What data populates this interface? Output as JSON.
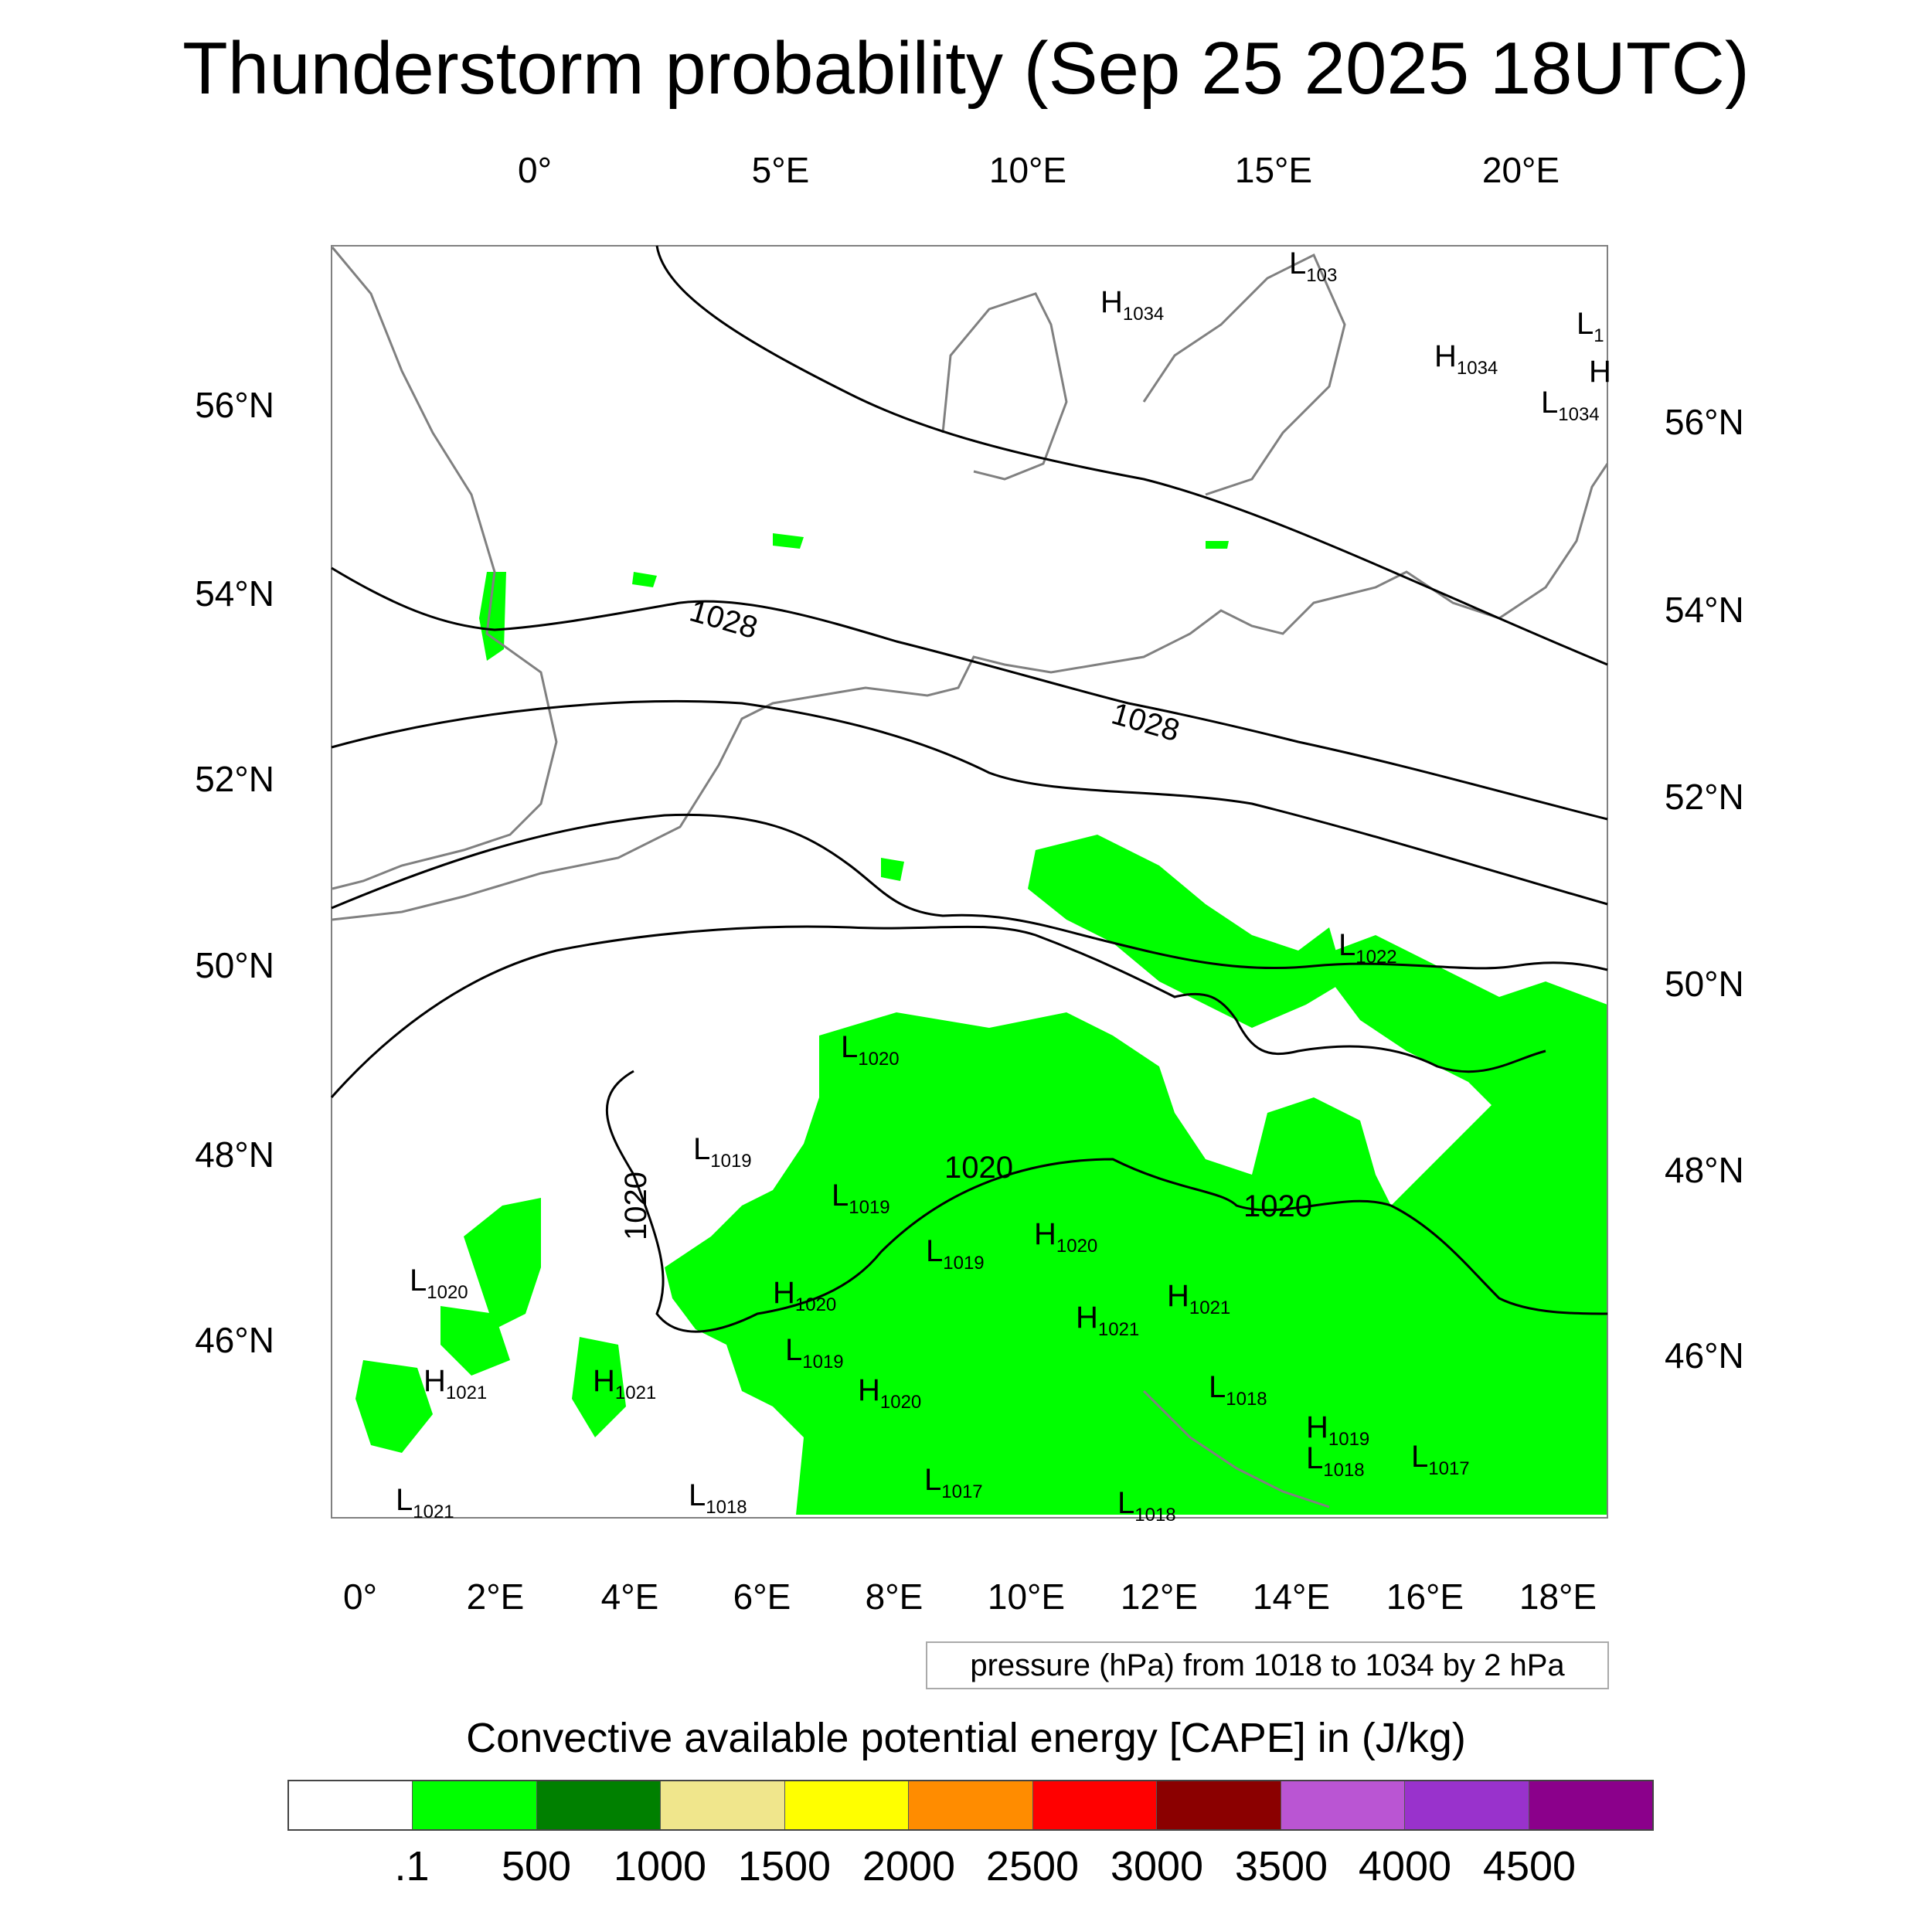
{
  "title": "Thunderstorm probability (Sep 25 2025 18UTC)",
  "map": {
    "top_lon_labels": [
      "0°",
      "5°E",
      "10°E",
      "15°E",
      "20°E"
    ],
    "bottom_lon_labels": [
      "0°",
      "2°E",
      "4°E",
      "6°E",
      "8°E",
      "10°E",
      "12°E",
      "14°E",
      "16°E",
      "18°E"
    ],
    "left_lat_labels": [
      "56°N",
      "54°N",
      "52°N",
      "50°N",
      "48°N",
      "46°N"
    ],
    "right_lat_labels": [
      "56°N",
      "54°N",
      "52°N",
      "50°N",
      "48°N",
      "46°N"
    ],
    "isobar_labels": [
      "1028",
      "1028",
      "1020",
      "1020",
      "1020"
    ],
    "pressure_centers": [
      {
        "type": "L",
        "value": "103"
      },
      {
        "type": "H",
        "value": "1034"
      },
      {
        "type": "H",
        "value": "1034"
      },
      {
        "type": "L",
        "value": "1"
      },
      {
        "type": "H",
        "value": ""
      },
      {
        "type": "L",
        "value": "1034"
      },
      {
        "type": "L",
        "value": "1022"
      },
      {
        "type": "L",
        "value": "1020"
      },
      {
        "type": "L",
        "value": "1019"
      },
      {
        "type": "L",
        "value": "1019"
      },
      {
        "type": "L",
        "value": "1019"
      },
      {
        "type": "H",
        "value": "1020"
      },
      {
        "type": "H",
        "value": "1020"
      },
      {
        "type": "H",
        "value": "1021"
      },
      {
        "type": "H",
        "value": "1021"
      },
      {
        "type": "L",
        "value": "1020"
      },
      {
        "type": "H",
        "value": "1021"
      },
      {
        "type": "H",
        "value": "1021"
      },
      {
        "type": "L",
        "value": "1019"
      },
      {
        "type": "H",
        "value": "1020"
      },
      {
        "type": "L",
        "value": "1018"
      },
      {
        "type": "H",
        "value": "1019"
      },
      {
        "type": "L",
        "value": "1018"
      },
      {
        "type": "L",
        "value": "1017"
      },
      {
        "type": "L",
        "value": "1017"
      },
      {
        "type": "L",
        "value": "1018"
      },
      {
        "type": "L",
        "value": "1021"
      },
      {
        "type": "L",
        "value": "1018"
      }
    ]
  },
  "pressure_note": "pressure (hPa) from 1018 to 1034 by 2 hPa",
  "colorbar": {
    "title": "Convective available potential energy [CAPE] in (J/kg)",
    "colors": [
      "#ffffff",
      "#00ff00",
      "#008000",
      "#f0e68c",
      "#ffff00",
      "#ff8c00",
      "#ff0000",
      "#8b0000",
      "#ba55d3",
      "#9932cc",
      "#8b008b"
    ],
    "tick_labels": [
      ".1",
      "500",
      "1000",
      "1500",
      "2000",
      "2500",
      "3000",
      "3500",
      "4000",
      "4500"
    ]
  }
}
